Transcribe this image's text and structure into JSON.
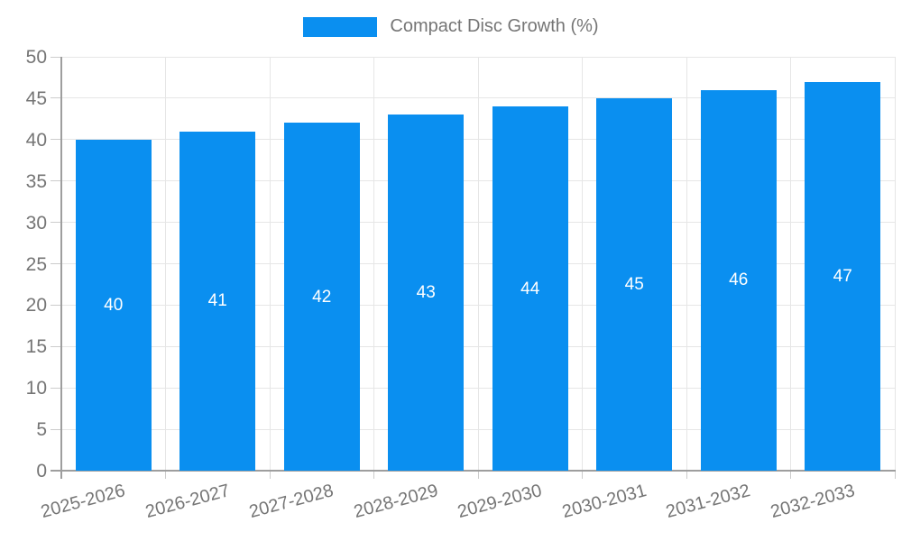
{
  "legend": {
    "label": "Compact Disc Growth (%)"
  },
  "colors": {
    "bar": "#0A8FF0",
    "axis": "#9e9e9e",
    "grid": "#e6e6e6",
    "tick": "#cccccc",
    "tick_label": "#757575",
    "bar_label": "#ffffff",
    "background": "#ffffff"
  },
  "chart_data": {
    "type": "bar",
    "title": "",
    "xlabel": "",
    "ylabel": "",
    "categories": [
      "2025-2026",
      "2026-2027",
      "2027-2028",
      "2028-2029",
      "2029-2030",
      "2030-2031",
      "2031-2032",
      "2032-2033"
    ],
    "series": [
      {
        "name": "Compact Disc Growth (%)",
        "values": [
          40,
          41,
          42,
          43,
          44,
          45,
          46,
          47
        ]
      }
    ],
    "ylim": [
      0,
      50
    ],
    "ytick_step": 5,
    "grid": true,
    "legend_position": "top-center",
    "bar_value_labels": true,
    "x_label_rotation_deg": -15
  }
}
